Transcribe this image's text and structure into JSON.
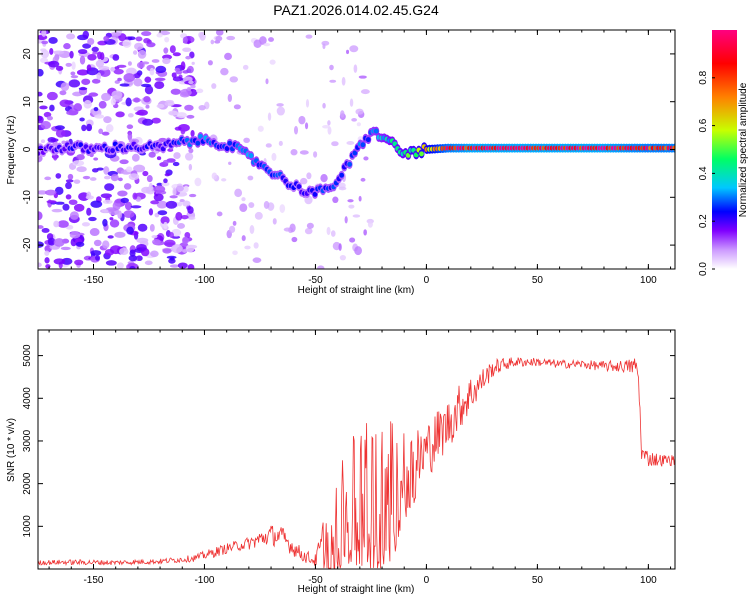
{
  "figure_title": "PAZ1.2026.014.02.45.G24",
  "chart_data": [
    {
      "type": "heatmap",
      "title": "PAZ1.2026.014.02.45.G24",
      "xlabel": "Height of straight line (km)",
      "ylabel": "Frequency (Hz)",
      "xlim": [
        -175,
        112
      ],
      "ylim": [
        -25,
        25
      ],
      "xticks": [
        -150,
        -100,
        -50,
        0,
        50,
        100
      ],
      "yticks": [
        -20,
        -10,
        0,
        10,
        20
      ],
      "colorbar": {
        "label": "Normalized spectral amplitude",
        "range": [
          0,
          1
        ],
        "ticks": [
          0.0,
          0.2,
          0.4,
          0.6,
          0.8
        ],
        "colormap": [
          "#ffffff",
          "#cc99ff",
          "#8000ff",
          "#0000ff",
          "#00c8ff",
          "#00ff64",
          "#c8ff00",
          "#ff8000",
          "#ff0000",
          "#ff0080"
        ]
      },
      "ridge_x": [
        -175,
        -160,
        -150,
        -140,
        -130,
        -120,
        -110,
        -100,
        -95,
        -90,
        -85,
        -80,
        -75,
        -70,
        -65,
        -60,
        -55,
        -50,
        -45,
        -40,
        -35,
        -30,
        -25,
        -20,
        -15,
        -10,
        -5,
        0,
        10,
        20,
        40,
        60,
        80,
        100,
        112
      ],
      "ridge_y": [
        0.0,
        0.5,
        0.0,
        0.5,
        0.5,
        0.5,
        1.5,
        2.0,
        1.5,
        1.0,
        0.0,
        -1.5,
        -3.0,
        -4.5,
        -6.0,
        -7.5,
        -8.5,
        -9.0,
        -8.5,
        -6.5,
        -3.0,
        0.5,
        3.5,
        3.0,
        1.0,
        -1.0,
        -0.5,
        0.0,
        0.3,
        0.3,
        0.3,
        0.3,
        0.3,
        0.3,
        0.3
      ],
      "ridge_amplitude": [
        0.25,
        0.3,
        0.3,
        0.3,
        0.3,
        0.3,
        0.35,
        0.4,
        0.35,
        0.35,
        0.4,
        0.4,
        0.4,
        0.35,
        0.35,
        0.3,
        0.3,
        0.35,
        0.35,
        0.35,
        0.35,
        0.4,
        0.4,
        0.45,
        0.5,
        0.55,
        0.6,
        0.7,
        0.9,
        0.95,
        0.95,
        0.95,
        0.95,
        0.9,
        0.9
      ],
      "noise_extent_x": [
        -175,
        -115
      ],
      "noise_amplitude_max": 0.25
    },
    {
      "type": "line",
      "xlabel": "Height of straight line (km)",
      "ylabel": "SNR (10 * v/v)",
      "xlim": [
        -175,
        112
      ],
      "ylim": [
        0,
        5600
      ],
      "xticks": [
        -150,
        -100,
        -50,
        0,
        50,
        100
      ],
      "yticks": [
        1000,
        2000,
        3000,
        4000,
        5000
      ],
      "color": "#ee3333",
      "series": [
        {
          "name": "SNR",
          "x": [
            -175,
            -160,
            -140,
            -120,
            -105,
            -100,
            -95,
            -90,
            -85,
            -80,
            -75,
            -70,
            -65,
            -60,
            -55,
            -50,
            -45,
            -40,
            -35,
            -30,
            -25,
            -20,
            -15,
            -10,
            -5,
            0,
            5,
            10,
            15,
            20,
            25,
            30,
            35,
            40,
            50,
            60,
            70,
            80,
            90,
            95,
            96,
            97,
            100,
            105,
            112
          ],
          "y": [
            150,
            160,
            150,
            180,
            250,
            320,
            400,
            480,
            550,
            600,
            700,
            800,
            750,
            500,
            300,
            200,
            700,
            1100,
            1400,
            1600,
            1700,
            1800,
            1900,
            2100,
            2400,
            2800,
            3100,
            3400,
            3800,
            4100,
            4400,
            4700,
            4800,
            4850,
            4850,
            4800,
            4800,
            4750,
            4750,
            4750,
            4000,
            2700,
            2600,
            2550,
            2550
          ],
          "jitter": [
            60,
            60,
            60,
            60,
            80,
            100,
            120,
            120,
            130,
            150,
            200,
            250,
            250,
            200,
            150,
            150,
            900,
            1300,
            1600,
            1700,
            1800,
            1900,
            1700,
            1200,
            900,
            700,
            650,
            600,
            550,
            450,
            300,
            200,
            150,
            120,
            100,
            100,
            100,
            120,
            150,
            250,
            300,
            200,
            200,
            150,
            120
          ]
        }
      ]
    }
  ]
}
